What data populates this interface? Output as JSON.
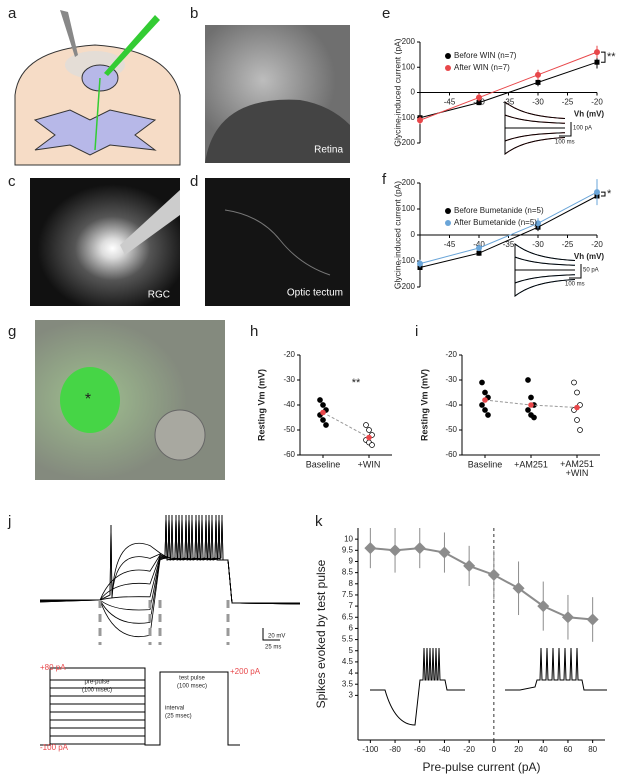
{
  "panel_labels": [
    "a",
    "b",
    "c",
    "d",
    "e",
    "f",
    "g",
    "h",
    "i",
    "j",
    "k"
  ],
  "image_captions": {
    "b": "Retina",
    "c": "RGC",
    "d": "Optic tectum",
    "g": "*"
  },
  "protocol": {
    "traces_scale": [
      "20 mV",
      "25 ms"
    ],
    "pre_pulse": [
      "pre-pulse",
      "(100 msec)"
    ],
    "test_pulse": [
      "test pulse",
      "(100 msec)"
    ],
    "interval": [
      "interval",
      "(25 msec)"
    ],
    "levels": [
      "+80 pA",
      "-100 pA",
      "+200 pA"
    ]
  },
  "chart_data": [
    {
      "type": "line",
      "y_label": "Glycine-induced current (pA)",
      "x_label": "Vh (mV)",
      "x": [
        -50,
        -40,
        -30,
        -20
      ],
      "xlim": [
        -50,
        -20
      ],
      "xticks": [
        -45,
        -40,
        -35,
        -30,
        -25,
        -20
      ],
      "ylim": [
        -200,
        200
      ],
      "yticks": [
        -200,
        -100,
        0,
        100,
        200
      ],
      "x_axis_at_zero": true,
      "annotation": "**",
      "inset_scale": [
        "100 pA",
        "100 ms"
      ],
      "series": [
        {
          "name": "Before WIN (n=7)",
          "color": "#000000",
          "values": [
            -100,
            -40,
            40,
            120
          ],
          "errors": [
            15,
            10,
            15,
            25
          ]
        },
        {
          "name": "After WIN (n=7)",
          "color": "#e8474a",
          "values": [
            -110,
            -20,
            70,
            160
          ],
          "errors": [
            15,
            15,
            20,
            25
          ]
        }
      ]
    },
    {
      "type": "line",
      "y_label": "Glycine-induced current (pA)",
      "x_label": "Vh (mV)",
      "x": [
        -50,
        -40,
        -30,
        -20
      ],
      "xlim": [
        -50,
        -20
      ],
      "xticks": [
        -45,
        -40,
        -35,
        -30,
        -25,
        -20
      ],
      "ylim": [
        -200,
        200
      ],
      "yticks": [
        -200,
        -100,
        0,
        100,
        200
      ],
      "x_axis_at_zero": true,
      "annotation": "*",
      "inset_scale": [
        "50 pA",
        "100 ms"
      ],
      "series": [
        {
          "name": "Before Bumetanide (n=5)",
          "color": "#000000",
          "values": [
            -125,
            -70,
            30,
            150
          ],
          "errors": [
            15,
            10,
            15,
            30
          ]
        },
        {
          "name": "After Bumetanide (n=5)",
          "color": "#6aa5d8",
          "values": [
            -110,
            -50,
            45,
            165
          ],
          "errors": [
            15,
            12,
            20,
            50
          ]
        }
      ]
    },
    {
      "type": "strip",
      "y_label": "Resting Vm (mV)",
      "categories": [
        "Baseline",
        "+WIN"
      ],
      "ylim": [
        -60,
        -20
      ],
      "yticks": [
        -60,
        -50,
        -40,
        -30,
        -20
      ],
      "open": [
        false,
        true
      ],
      "mean_color": "#e8474a",
      "annotation": "**",
      "points": [
        [
          -38,
          -40,
          -42,
          -44,
          -46,
          -48
        ],
        [
          -48,
          -50,
          -52,
          -54,
          -55,
          -56
        ]
      ],
      "means": [
        -43,
        -53
      ]
    },
    {
      "type": "strip",
      "y_label": "Resting Vm (mV)",
      "categories": [
        "Baseline",
        "+AM251",
        "+AM251\n+WIN"
      ],
      "ylim": [
        -60,
        -20
      ],
      "yticks": [
        -60,
        -50,
        -40,
        -30,
        -20
      ],
      "open": [
        false,
        false,
        true
      ],
      "mean_color": "#e8474a",
      "points": [
        [
          -31,
          -35,
          -37,
          -40,
          -42,
          -44
        ],
        [
          -30,
          -37,
          -40,
          -42,
          -44,
          -45
        ],
        [
          -31,
          -35,
          -40,
          -42,
          -46,
          -50
        ]
      ],
      "means": [
        -38,
        -40,
        -41
      ]
    },
    {
      "type": "line",
      "y_label": "Spikes evoked by test pulse",
      "x_label": "Pre-pulse current (pA)",
      "x": [
        -100,
        -80,
        -60,
        -40,
        -20,
        0,
        20,
        40,
        60,
        80
      ],
      "xlim": [
        -110,
        90
      ],
      "xticks": [
        -100,
        -80,
        -60,
        -40,
        -20,
        0,
        20,
        40,
        60,
        80
      ],
      "ylim": [
        1,
        10.5
      ],
      "yticks": [
        3,
        3.5,
        4,
        4.5,
        5,
        5.5,
        6,
        6.5,
        7,
        7.5,
        8,
        8.5,
        9,
        9.5,
        10
      ],
      "x_axis_at_zero": false,
      "reference_x": 0,
      "series": [
        {
          "color": "#8c8c8c",
          "values": [
            9.6,
            9.5,
            9.6,
            9.4,
            8.8,
            8.4,
            7.8,
            7.0,
            6.5,
            6.4
          ],
          "errors": [
            0.9,
            1.0,
            0.9,
            0.9,
            0.9,
            1.1,
            1.2,
            1.1,
            1.0,
            1.0
          ]
        }
      ]
    }
  ]
}
